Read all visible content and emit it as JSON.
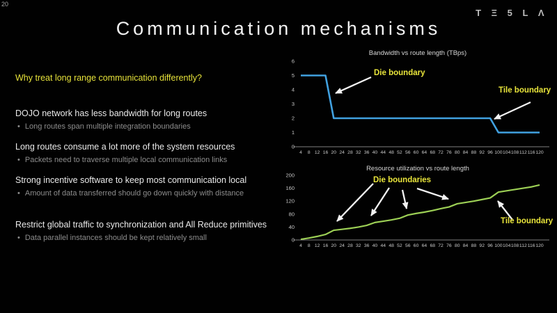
{
  "page_number": "20",
  "brand_wordmark": "T Ξ 5 L Λ",
  "title": "Communication mechanisms",
  "bullet_char": "•",
  "body": {
    "question": "Why treat long range communication differently?",
    "points": [
      {
        "heading": "DOJO network has less bandwidth for long routes",
        "bullet": "Long routes span multiple integration boundaries"
      },
      {
        "heading": "Long routes consume a lot more of the system resources",
        "bullet": "Packets need to traverse multiple local communication links"
      },
      {
        "heading": "Strong incentive software to keep most communication local",
        "bullet": "Amount of data transferred should go down quickly with distance"
      },
      {
        "heading": "Restrict global traffic to synchronization and All Reduce primitives",
        "bullet": "Data parallel instances should be kept relatively small"
      }
    ]
  },
  "colors": {
    "background": "#000000",
    "accent_yellow": "#e9e53b",
    "bandwidth_blue": "#41a1e0",
    "utilization_green": "#9ccf55"
  },
  "chart_data": [
    {
      "type": "line",
      "title": "Bandwidth vs route length (TBps)",
      "xlabel": "",
      "ylabel": "",
      "x": [
        4,
        8,
        12,
        16,
        20,
        24,
        28,
        32,
        36,
        40,
        44,
        48,
        52,
        56,
        60,
        64,
        68,
        72,
        76,
        80,
        84,
        88,
        92,
        96,
        100,
        104,
        108,
        112,
        116,
        120
      ],
      "series": [
        {
          "name": "bandwidth",
          "color": "#41a1e0",
          "values": [
            5,
            5,
            5,
            5,
            2,
            2,
            2,
            2,
            2,
            2,
            2,
            2,
            2,
            2,
            2,
            2,
            2,
            2,
            2,
            2,
            2,
            2,
            2,
            2,
            1,
            1,
            1,
            1,
            1,
            1
          ]
        }
      ],
      "ylim": [
        0,
        6
      ],
      "yticks": [
        0,
        1,
        2,
        3,
        4,
        5,
        6
      ],
      "grid": false,
      "legend": "none",
      "annotations": [
        "Die boundary",
        "Tile boundary"
      ]
    },
    {
      "type": "line",
      "title": "Resource utilization vs route length",
      "xlabel": "",
      "ylabel": "",
      "x": [
        4,
        8,
        12,
        16,
        20,
        24,
        28,
        32,
        36,
        40,
        44,
        48,
        52,
        56,
        60,
        64,
        68,
        72,
        76,
        80,
        84,
        88,
        92,
        96,
        100,
        104,
        108,
        112,
        116,
        120
      ],
      "series": [
        {
          "name": "resource-utilization",
          "color": "#9ccf55",
          "values": [
            2,
            6,
            11,
            17,
            30,
            33,
            36,
            40,
            45,
            54,
            58,
            62,
            67,
            77,
            82,
            86,
            91,
            97,
            102,
            112,
            116,
            120,
            125,
            130,
            148,
            152,
            156,
            160,
            164,
            170
          ]
        }
      ],
      "ylim": [
        0,
        200
      ],
      "yticks": [
        0,
        40,
        80,
        120,
        160,
        200
      ],
      "grid": false,
      "legend": "none",
      "annotations": [
        "Die boundaries",
        "Tile boundary"
      ]
    }
  ]
}
